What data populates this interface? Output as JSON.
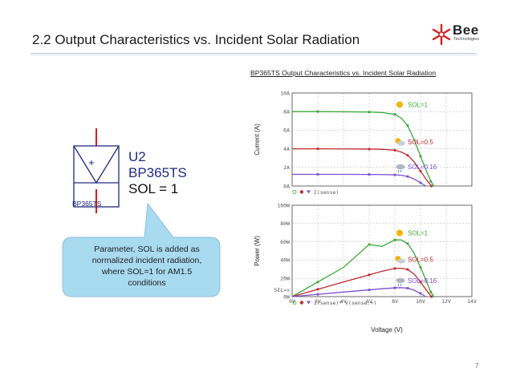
{
  "slide": {
    "title": "2.2 Output Characteristics vs. Incident Solar Radiation",
    "page_number": "7"
  },
  "logo": {
    "word": "Bee",
    "sub": "Technologies",
    "accent": "#d81e1e"
  },
  "component": {
    "ref": "U2",
    "model": "BP365TS",
    "param": "SOL = 1",
    "tag": "BP365TS",
    "color": "#1e2a80"
  },
  "callout": {
    "lines": [
      "Parameter, SOL is added as",
      "normalized incident radiation,",
      "where SOL=1 for AM1.5",
      "conditions"
    ],
    "fill": "#a8daf0"
  },
  "chart_data": {
    "title": "BP365TS Output Characteristics vs. Incident Solar Radiation",
    "type": "line",
    "xlabel": "Voltage (V)",
    "x_ticks": [
      "0V",
      "2V",
      "4V",
      "6V",
      "8V",
      "10V",
      "12V",
      "14V"
    ],
    "xlim": [
      0,
      14
    ],
    "panels": [
      {
        "name": "current",
        "ylabel": "Current (A)",
        "ylim": [
          0,
          10
        ],
        "y_ticks": [
          "10A",
          "8A",
          "6A",
          "4A",
          "2A",
          "0A"
        ],
        "trace_label": "I(sense)",
        "series": [
          {
            "name": "SOL=1",
            "color": "#3aa83a",
            "x": [
              0,
              2,
              4,
              6,
              7,
              8,
              8.5,
              9,
              9.5,
              10,
              10.4,
              10.8,
              11.05
            ],
            "y": [
              8.0,
              8.0,
              7.98,
              7.95,
              7.9,
              7.7,
              7.3,
              6.5,
              5.0,
              3.2,
              1.8,
              0.5,
              0
            ]
          },
          {
            "name": "SOL=0.5",
            "color": "#c0282d",
            "x": [
              0,
              2,
              4,
              6,
              7,
              8,
              8.5,
              9,
              9.5,
              10,
              10.5,
              10.85
            ],
            "y": [
              4.0,
              4.0,
              3.99,
              3.97,
              3.95,
              3.85,
              3.65,
              3.3,
              2.6,
              1.6,
              0.6,
              0
            ]
          },
          {
            "name": "SOL=0.16",
            "color": "#7b4fd1",
            "x": [
              0,
              2,
              4,
              6,
              7,
              8,
              8.5,
              9,
              9.5,
              10,
              10.4
            ],
            "y": [
              1.25,
              1.25,
              1.25,
              1.24,
              1.23,
              1.2,
              1.15,
              1.02,
              0.75,
              0.35,
              0
            ]
          }
        ],
        "annotations": [
          {
            "text": "SOL=1",
            "x": 9.0,
            "y": 8.5
          },
          {
            "text": "SOL=0.5",
            "x": 9.0,
            "y": 4.5
          },
          {
            "text": "SOL=0.16",
            "x": 9.0,
            "y": 1.8
          }
        ]
      },
      {
        "name": "power",
        "ylabel": "Power (W)",
        "ylim": [
          0,
          100
        ],
        "y_ticks": [
          "100W",
          "80W",
          "60W",
          "40W",
          "20W",
          "0W"
        ],
        "extra_label": "SEL>>",
        "trace_label": "I(sense)* V(sense:+)",
        "series": [
          {
            "name": "SOL=1",
            "color": "#3aa83a",
            "x": [
              0,
              2,
              4,
              6,
              7,
              8,
              8.5,
              9,
              9.5,
              10,
              10.4,
              10.8,
              11.05
            ],
            "y": [
              0,
              16,
              32,
              57,
              55,
              62,
              62,
              58,
              47.5,
              32,
              19,
              5,
              0
            ]
          },
          {
            "name": "SOL=0.5",
            "color": "#c0282d",
            "x": [
              0,
              2,
              4,
              6,
              7,
              8,
              8.5,
              9,
              9.5,
              10,
              10.5,
              10.85
            ],
            "y": [
              0,
              8,
              16,
              23.8,
              27.7,
              30.8,
              31,
              29.7,
              24.7,
              16,
              6.3,
              0
            ]
          },
          {
            "name": "SOL=0.16",
            "color": "#7b4fd1",
            "x": [
              0,
              2,
              4,
              6,
              7,
              8,
              8.5,
              9,
              9.5,
              10,
              10.4
            ],
            "y": [
              0,
              2.5,
              5,
              7.4,
              8.6,
              9.6,
              9.8,
              9.2,
              7.1,
              3.5,
              0
            ]
          }
        ],
        "annotations": [
          {
            "text": "SOL=1",
            "x": 9.0,
            "y": 67
          },
          {
            "text": "SOL=0.5",
            "x": 9.0,
            "y": 38
          },
          {
            "text": "SOL=0.16",
            "x": 9.0,
            "y": 15
          }
        ]
      }
    ]
  }
}
